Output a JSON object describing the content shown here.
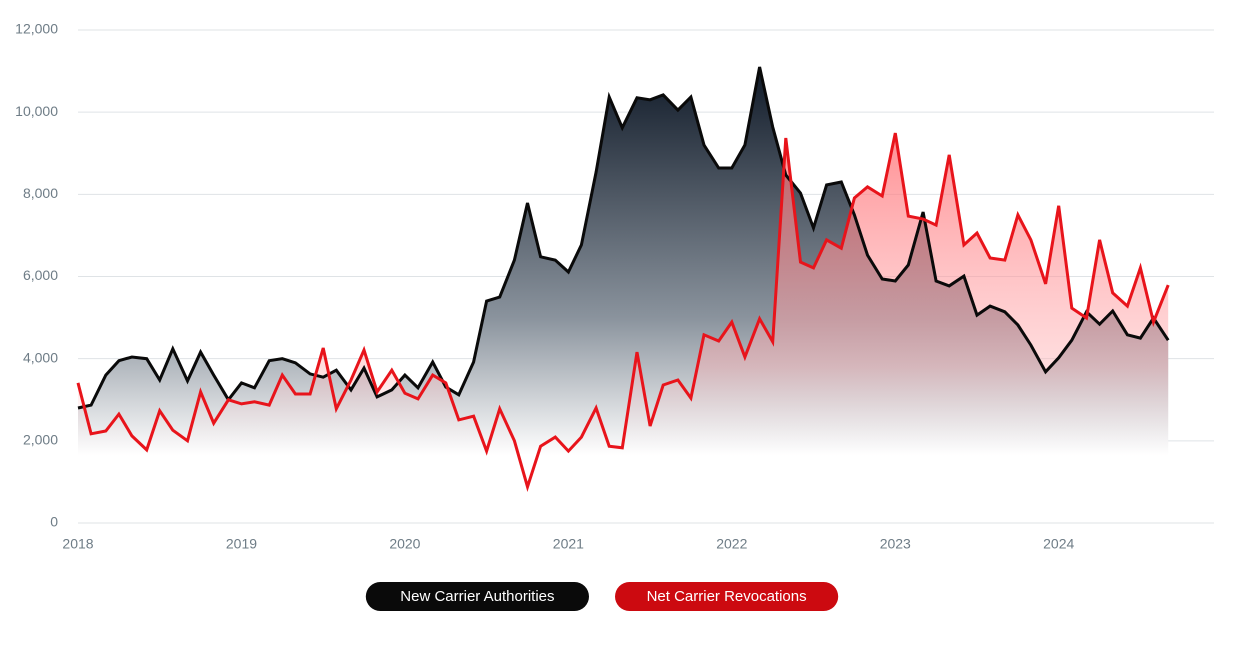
{
  "chart_data": {
    "type": "area-line",
    "x": [
      2018,
      2018.08,
      2018.17,
      2018.25,
      2018.33,
      2018.42,
      2018.5,
      2018.58,
      2018.67,
      2018.75,
      2018.83,
      2018.92,
      2019,
      2019.08,
      2019.17,
      2019.25,
      2019.33,
      2019.42,
      2019.5,
      2019.58,
      2019.67,
      2019.75,
      2019.83,
      2019.92,
      2020,
      2020.08,
      2020.17,
      2020.25,
      2020.33,
      2020.42,
      2020.5,
      2020.58,
      2020.67,
      2020.75,
      2020.83,
      2020.92,
      2021,
      2021.08,
      2021.17,
      2021.25,
      2021.33,
      2021.42,
      2021.5,
      2021.58,
      2021.67,
      2021.75,
      2021.83,
      2021.92,
      2022,
      2022.08,
      2022.17,
      2022.25,
      2022.33,
      2022.42,
      2022.5,
      2022.58,
      2022.67,
      2022.75,
      2022.83,
      2022.92,
      2023,
      2023.08,
      2023.17,
      2023.25,
      2023.33,
      2023.42,
      2023.5,
      2023.58,
      2023.67,
      2023.75,
      2023.83,
      2023.92,
      2024,
      2024.08,
      2024.17,
      2024.25,
      2024.33,
      2024.42,
      2024.5,
      2024.58,
      2024.67
    ],
    "series": [
      {
        "name": "New Carrier Authorities",
        "color": "#0a0a0a",
        "values": [
          2800,
          2870,
          3600,
          3950,
          4040,
          4000,
          3480,
          4240,
          3460,
          4160,
          3600,
          3000,
          3410,
          3290,
          3950,
          4000,
          3900,
          3630,
          3550,
          3720,
          3240,
          3770,
          3070,
          3240,
          3600,
          3290,
          3920,
          3310,
          3120,
          3920,
          5400,
          5500,
          6400,
          7790,
          6480,
          6400,
          6110,
          6770,
          8540,
          10370,
          9620,
          10350,
          10300,
          10420,
          10050,
          10370,
          9200,
          8640,
          8640,
          9200,
          11100,
          9640,
          8470,
          8030,
          7180,
          8230,
          8300,
          7500,
          6520,
          5940,
          5890,
          6280,
          7570,
          5890,
          5770,
          6010,
          5060,
          5280,
          5140,
          4820,
          4330,
          3680,
          4020,
          4450,
          5140,
          4840,
          5160,
          4580,
          4500,
          4990,
          4450
        ]
      },
      {
        "name": "Net Carrier Revocations",
        "color": "#e8141b",
        "values": [
          3410,
          2170,
          2240,
          2650,
          2120,
          1780,
          2730,
          2260,
          2000,
          3190,
          2430,
          3000,
          2900,
          2950,
          2870,
          3600,
          3140,
          3140,
          4260,
          2780,
          3480,
          4210,
          3190,
          3720,
          3160,
          3020,
          3600,
          3410,
          2510,
          2600,
          1750,
          2780,
          2000,
          880,
          1870,
          2090,
          1750,
          2090,
          2800,
          1870,
          1830,
          4160,
          2360,
          3360,
          3480,
          3040,
          4580,
          4430,
          4890,
          4040,
          4970,
          4410,
          9370,
          6350,
          6210,
          6890,
          6690,
          7910,
          8180,
          7960,
          9490,
          7470,
          7400,
          7250,
          8960,
          6770,
          7060,
          6450,
          6400,
          7500,
          6890,
          5820,
          7720,
          5230,
          4990,
          6890,
          5600,
          5280,
          6210,
          4890,
          5790
        ]
      }
    ],
    "xlim": [
      2018,
      2024.95
    ],
    "xticks": [
      2018,
      2019,
      2020,
      2021,
      2022,
      2023,
      2024
    ],
    "ylim": [
      0,
      12000
    ],
    "yticks": [
      0,
      {
        "value": 2000,
        "label": "2,000"
      },
      {
        "value": 4000,
        "label": "4,000"
      },
      {
        "value": 6000,
        "label": "6,000"
      },
      {
        "value": 8000,
        "label": "8,000"
      },
      {
        "value": 10000,
        "label": "10,000"
      },
      {
        "value": 12000,
        "label": "12,000"
      }
    ],
    "grid": true
  }
}
